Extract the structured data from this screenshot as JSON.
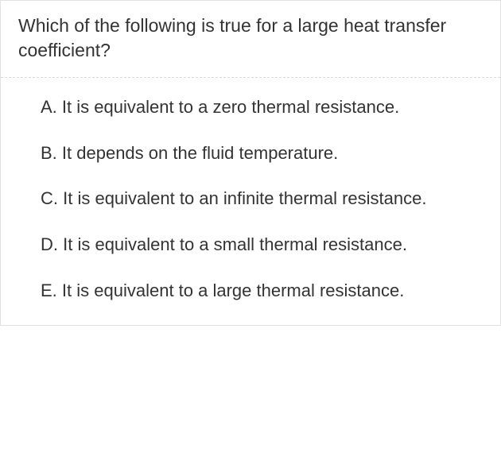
{
  "question": {
    "text": "Which of the following is true for a large heat transfer coefficient?"
  },
  "options": [
    {
      "letter": "A.",
      "text": "It is equivalent to a zero thermal resistance."
    },
    {
      "letter": "B.",
      "text": "It depends on the fluid temperature."
    },
    {
      "letter": "C.",
      "text": "It is equivalent to an infinite thermal resistance."
    },
    {
      "letter": "D.",
      "text": "It is equivalent to a small thermal resistance."
    },
    {
      "letter": "E.",
      "text": "It is equivalent to a large thermal resistance."
    }
  ],
  "colors": {
    "text": "#333333",
    "border": "#e0e0e0",
    "dashed_divider": "#d8d8d8",
    "background": "#ffffff"
  },
  "typography": {
    "question_fontsize": 23,
    "option_fontsize": 22,
    "line_height": 1.35,
    "font_family": "-apple-system"
  }
}
